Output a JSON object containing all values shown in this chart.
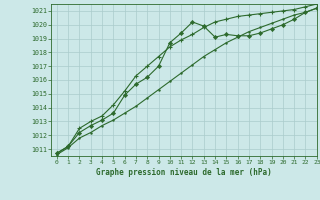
{
  "title": "Graphe pression niveau de la mer (hPa)",
  "background_color": "#cce8e8",
  "grid_color": "#aacccc",
  "line_color": "#2d6a2d",
  "marker_color": "#2d6a2d",
  "xlim": [
    -0.5,
    23
  ],
  "ylim": [
    1010.5,
    1021.5
  ],
  "yticks": [
    1011,
    1012,
    1013,
    1014,
    1015,
    1016,
    1017,
    1018,
    1019,
    1020,
    1021
  ],
  "xticks": [
    0,
    1,
    2,
    3,
    4,
    5,
    6,
    7,
    8,
    9,
    10,
    11,
    12,
    13,
    14,
    15,
    16,
    17,
    18,
    19,
    20,
    21,
    22,
    23
  ],
  "series1_x": [
    0,
    1,
    2,
    3,
    4,
    5,
    6,
    7,
    8,
    9,
    10,
    11,
    12,
    13,
    14,
    15,
    16,
    17,
    18,
    19,
    20,
    21,
    22,
    23
  ],
  "series1_y": [
    1010.6,
    1011.1,
    1011.8,
    1012.2,
    1012.7,
    1013.1,
    1013.6,
    1014.1,
    1014.7,
    1015.3,
    1015.9,
    1016.5,
    1017.1,
    1017.7,
    1018.2,
    1018.7,
    1019.1,
    1019.5,
    1019.8,
    1020.1,
    1020.4,
    1020.7,
    1020.9,
    1021.2
  ],
  "series2_x": [
    0,
    1,
    2,
    3,
    4,
    5,
    6,
    7,
    8,
    9,
    10,
    11,
    12,
    13,
    14,
    15,
    16,
    17,
    18,
    19,
    20,
    21,
    22,
    23
  ],
  "series2_y": [
    1010.7,
    1011.2,
    1012.2,
    1012.7,
    1013.1,
    1013.6,
    1014.9,
    1015.7,
    1016.2,
    1017.0,
    1018.7,
    1019.4,
    1020.2,
    1019.9,
    1019.1,
    1019.3,
    1019.2,
    1019.2,
    1019.4,
    1019.7,
    1020.0,
    1020.4,
    1020.9,
    1021.2
  ],
  "series3_x": [
    0,
    1,
    2,
    3,
    4,
    5,
    6,
    7,
    8,
    9,
    10,
    11,
    12,
    13,
    14,
    15,
    16,
    17,
    18,
    19,
    20,
    21,
    22,
    23
  ],
  "series3_y": [
    1010.7,
    1011.2,
    1012.5,
    1013.0,
    1013.4,
    1014.2,
    1015.2,
    1016.3,
    1017.0,
    1017.7,
    1018.4,
    1018.9,
    1019.3,
    1019.8,
    1020.2,
    1020.4,
    1020.6,
    1020.7,
    1020.8,
    1020.9,
    1021.0,
    1021.1,
    1021.3,
    1021.5
  ]
}
